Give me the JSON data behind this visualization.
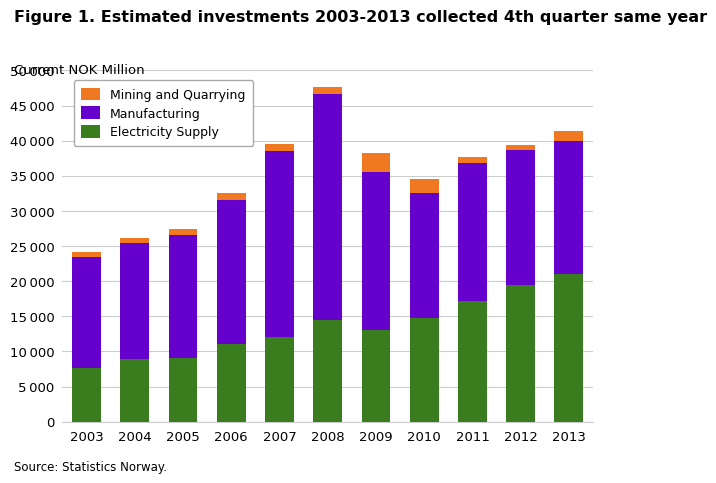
{
  "title": "Figure 1. Estimated investments 2003-2013 collected 4th quarter same year",
  "ylabel_text": "Current NOK Million",
  "source": "Source: Statistics Norway.",
  "years": [
    2003,
    2004,
    2005,
    2006,
    2007,
    2008,
    2009,
    2010,
    2011,
    2012,
    2013
  ],
  "electricity_supply": [
    7700,
    9000,
    9100,
    11000,
    12000,
    14500,
    13000,
    14700,
    17200,
    19500,
    21000
  ],
  "manufacturing": [
    15800,
    16500,
    17500,
    20600,
    26500,
    32200,
    22500,
    17800,
    19600,
    19200,
    19000
  ],
  "mining_quarrying": [
    700,
    700,
    900,
    1000,
    1000,
    1000,
    2700,
    2000,
    900,
    700,
    1400
  ],
  "colors": {
    "electricity_supply": "#3a7d1e",
    "manufacturing": "#6600cc",
    "mining_quarrying": "#f07820"
  },
  "ylim": [
    0,
    50000
  ],
  "yticks": [
    0,
    5000,
    10000,
    15000,
    20000,
    25000,
    30000,
    35000,
    40000,
    45000,
    50000
  ],
  "background_color": "#ffffff",
  "grid_color": "#cccccc",
  "title_fontsize": 11.5,
  "legend_labels": [
    "Mining and Quarrying",
    "Manufacturing",
    "Electricity Supply"
  ]
}
